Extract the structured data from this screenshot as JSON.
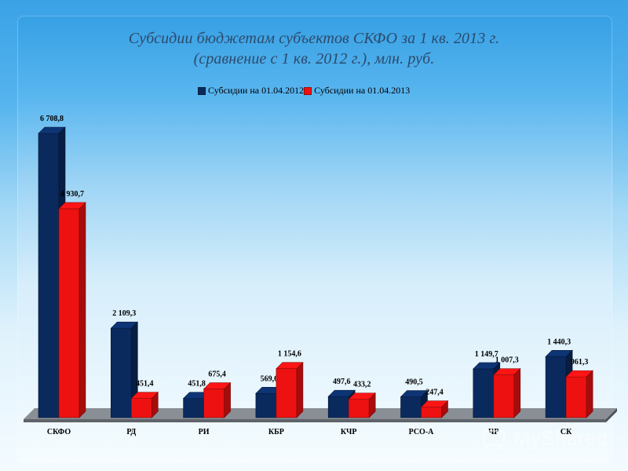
{
  "slide": {
    "title_line1": "Субсидии бюджетам субъектов СКФО за 1 кв. 2013 г.",
    "title_line2": "(сравнение с 1 кв. 2012 г.), млн. руб."
  },
  "legend": {
    "series1": "Субсидии на 01.04.2012",
    "series2": "Субсидии на 01.04.2013"
  },
  "watermark": {
    "text": "MyShared"
  },
  "chart_data": {
    "type": "bar",
    "title": "Субсидии бюджетам субъектов СКФО за 1 кв. 2013 г. (сравнение с 1 кв. 2012 г.), млн. руб.",
    "categories": [
      "СКФО",
      "РД",
      "РИ",
      "КБР",
      "КЧР",
      "РСО-А",
      "ЧР",
      "СК"
    ],
    "series": [
      {
        "name": "Субсидии на 01.04.2012",
        "color": "#0a2a5e",
        "values": [
          6708.8,
          2109.3,
          451.8,
          569.6,
          497.6,
          490.5,
          1149.7,
          1440.3
        ],
        "labels": [
          "6 708,8",
          "2 109,3",
          "451,8",
          "569,6",
          "497,6",
          "490,5",
          "1 149,7",
          "1 440,3"
        ]
      },
      {
        "name": "Субсидии на 01.04.2013",
        "color": "#ee1111",
        "values": [
          4930.7,
          451.4,
          675.4,
          1154.6,
          433.2,
          247.4,
          1007.3,
          961.3
        ],
        "labels": [
          "4 930,7",
          "451,4",
          "675,4",
          "1 154,6",
          "433,2",
          "247,4",
          "1 007,3",
          "961,3"
        ]
      }
    ],
    "xlabel": "",
    "ylabel": "",
    "ylim": [
      0,
      6708.8
    ],
    "grid": false,
    "legend_position": "top",
    "style": "3d-clustered-column"
  }
}
